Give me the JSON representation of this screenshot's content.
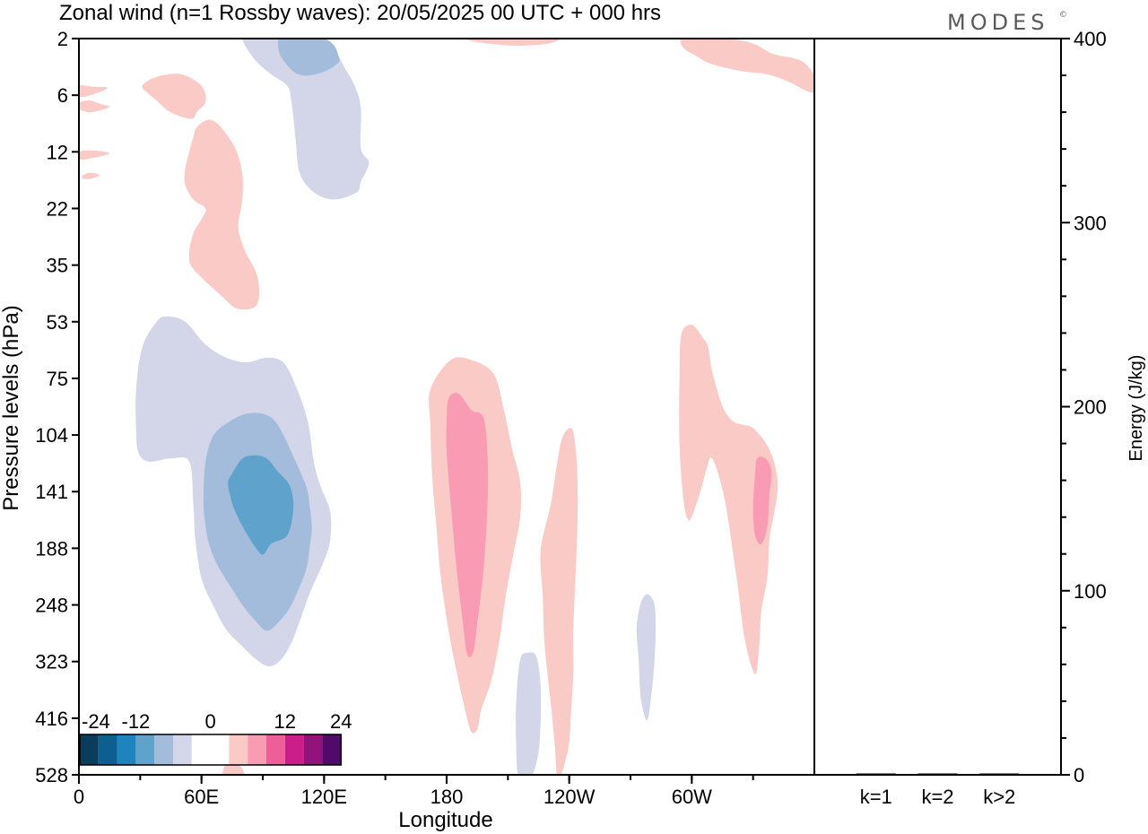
{
  "chart_data": {
    "type": "heatmap",
    "title": "Zonal wind (n=1 Rossby waves):  20/05/2025  00 UTC  + 000 hrs",
    "brand": "MODES",
    "brand_mark": "©",
    "xlabel": "Longitude",
    "ylabel": "Pressure levels (hPa)",
    "y2label": "Energy (J/kg)",
    "x_ticks": [
      "0",
      "60E",
      "120E",
      "180",
      "120W",
      "60W"
    ],
    "x_tick_lon": [
      0,
      60,
      120,
      180,
      240,
      300
    ],
    "xlim": [
      0,
      360
    ],
    "y_levels": [
      "2",
      "6",
      "12",
      "22",
      "35",
      "53",
      "75",
      "104",
      "141",
      "188",
      "248",
      "323",
      "416",
      "528"
    ],
    "y2_ticks": [
      "0",
      "100",
      "200",
      "300",
      "400"
    ],
    "y2_values": [
      0,
      100,
      200,
      300,
      400
    ],
    "y2lim": [
      0,
      400
    ],
    "colorbar": {
      "labels": [
        "-24",
        "-12",
        "0",
        "12",
        "24"
      ],
      "colors": [
        "#0a3d5c",
        "#0d5f91",
        "#1f84bd",
        "#5fa3cc",
        "#a3bcdc",
        "#d3d6e8",
        "#ffffff",
        "#ffffff",
        "#f9cac6",
        "#f99bb2",
        "#ee5f9a",
        "#cc1e8a",
        "#93137c",
        "#510a6a"
      ]
    },
    "energy_bars": {
      "categories": [
        "k=1",
        "k=2",
        "k>2"
      ],
      "values": [
        0.5,
        0.1,
        0.4
      ]
    },
    "contours": [
      {
        "level": "-3",
        "color": "#d3d6e8",
        "lon": [
          38.0,
          43.0,
          52.0,
          62.0,
          72.0,
          82.0,
          92.0,
          100.0,
          106.0,
          112.0,
          115.0,
          118.0,
          123.0,
          123.0,
          120.0,
          113.0,
          108.0,
          104.0,
          99.0,
          93.0,
          86.0,
          79.0,
          72.0,
          66.0,
          60.0,
          57.0,
          56.0,
          54.0,
          45.0,
          34.0,
          29.0,
          28.0,
          28.0,
          31.0
        ],
        "lev": [
          53.0,
          51.0,
          53.0,
          61.0,
          66.0,
          68.0,
          66.0,
          68.0,
          78.0,
          96.0,
          120.0,
          136.0,
          156.0,
          180.0,
          200.0,
          234.0,
          268.0,
          296.0,
          320.0,
          330.0,
          318.0,
          298.0,
          278.0,
          250.0,
          218.0,
          180.0,
          150.0,
          120.0,
          118.0,
          120.0,
          114.0,
          100.0,
          80.0,
          62.0
        ]
      },
      {
        "level": "-6",
        "color": "#a3bcdc",
        "lon": [
          66.0,
          74.0,
          82.0,
          90.0,
          96.0,
          101.0,
          104.0,
          111.0,
          113.0,
          114.0,
          113.0,
          111.0,
          104.0,
          98.0,
          92.0,
          86.0,
          80.0,
          74.0,
          68.0,
          64.0,
          62.0,
          61.0,
          62.0
        ],
        "lev": [
          104.0,
          96.0,
          92.0,
          92.0,
          96.0,
          106.0,
          114.0,
          136.0,
          152.0,
          170.0,
          186.0,
          210.0,
          248.0,
          268.0,
          280.0,
          266.0,
          248.0,
          226.0,
          205.0,
          186.0,
          168.0,
          148.0,
          120.0
        ]
      },
      {
        "level": "-9",
        "color": "#5fa3cc",
        "lon": [
          75.0,
          80.0,
          86.0,
          92.0,
          97.0,
          103.0,
          105.0,
          104.0,
          102.0,
          99.0,
          94.0,
          90.0,
          86.0,
          80.0,
          76.0,
          74.0,
          73.0
        ],
        "lev": [
          128.0,
          118.0,
          116.0,
          118.0,
          126.0,
          136.0,
          150.0,
          166.0,
          176.0,
          180.0,
          184.0,
          194.0,
          186.0,
          168.0,
          154.0,
          144.0,
          134.0
        ]
      },
      {
        "level": "-3",
        "color": "#d3d6e8",
        "lon": [
          80.0,
          87.0,
          100.0,
          116.0,
          125.0,
          130.0,
          135.0,
          138.0,
          138.0,
          142.0,
          138.0,
          136.0,
          125.0,
          115.0,
          108.0,
          106.0,
          104.0,
          102.0,
          94.0,
          86.0
        ],
        "lev": [
          2.0,
          2.0,
          1.8,
          2.0,
          2.5,
          3.5,
          5.0,
          7.0,
          11.5,
          13.5,
          16.5,
          18.5,
          20.0,
          18.5,
          15.0,
          10.0,
          6.5,
          5.0,
          4.0,
          3.0
        ]
      },
      {
        "level": "-6",
        "color": "#a3bcdc",
        "lon": [
          98.0,
          104.0,
          112.0,
          120.0,
          125.0,
          127.0,
          127.0,
          120.0,
          112.0,
          106.0,
          101.0,
          98.0
        ],
        "lev": [
          2.0,
          1.8,
          1.8,
          2.0,
          2.3,
          2.8,
          3.2,
          3.8,
          4.1,
          3.9,
          3.2,
          2.6
        ]
      },
      {
        "level": "3",
        "color": "#f9cac6",
        "lon": [
          172.0,
          182.0,
          192.0,
          203.0,
          208.0,
          212.0,
          216.0,
          216.0,
          213.0,
          209.0,
          206.0,
          202.0,
          197.0,
          195.0,
          192.0,
          189.0,
          185.0,
          181.0,
          177.0,
          175.0,
          173.0,
          172.0
        ],
        "lev": [
          80.0,
          67.0,
          67.0,
          73.0,
          90.0,
          112.0,
          134.0,
          160.0,
          190.0,
          236.0,
          290.0,
          350.0,
          400.0,
          436.0,
          440.0,
          400.0,
          340.0,
          280.0,
          214.0,
          168.0,
          132.0,
          98.0
        ]
      },
      {
        "level": "6",
        "color": "#f99bb2",
        "lon": [
          181.0,
          186.0,
          192.0,
          198.0,
          200.0,
          200.0,
          198.0,
          195.0,
          193.0,
          190.0,
          188.0,
          186.0,
          184.0,
          182.0,
          180.0,
          180.0
        ],
        "lev": [
          84.0,
          82.0,
          90.0,
          94.0,
          116.0,
          150.0,
          210.0,
          270.0,
          310.0,
          312.0,
          270.0,
          230.0,
          190.0,
          150.0,
          114.0,
          96.0
        ]
      },
      {
        "level": "3",
        "color": "#f9cac6",
        "lon": [
          231.0,
          236.0,
          241.0,
          243.0,
          244.0,
          244.0,
          243.0,
          242.0,
          242.0,
          241.0,
          240.0,
          238.0,
          236.0,
          234.0,
          233.0,
          231.0,
          228.0,
          227.0,
          226.0
        ],
        "lev": [
          150.0,
          108.0,
          100.0,
          110.0,
          130.0,
          170.0,
          220.0,
          280.0,
          340.0,
          400.0,
          460.0,
          500.0,
          528.0,
          528.0,
          470.0,
          390.0,
          300.0,
          236.0,
          190.0
        ]
      },
      {
        "level": "3",
        "color": "#f9cac6",
        "lon": [
          295.0,
          300.0,
          305.0,
          308.0,
          310.0,
          315.0,
          320.0,
          325.0,
          330.0,
          337.0,
          341.0,
          342.0,
          340.0,
          338.0,
          337.0,
          334.0,
          333.0,
          331.0,
          326.0,
          322.0,
          316.0,
          310.0,
          307.0,
          304.0,
          300.0,
          298.0,
          296.0,
          294.0,
          294.0
        ],
        "lev": [
          57.0,
          54.0,
          58.0,
          62.0,
          72.0,
          88.0,
          96.0,
          98.0,
          100.0,
          110.0,
          124.0,
          140.0,
          160.0,
          180.0,
          216.0,
          256.0,
          300.0,
          342.0,
          292.0,
          218.0,
          146.0,
          118.0,
          126.0,
          142.0,
          160.0,
          162.0,
          148.0,
          110.0,
          72.0
        ]
      },
      {
        "level": "6",
        "color": "#f99bb2",
        "lon": [
          332.0,
          336.0,
          339.0,
          338.0,
          337.0,
          334.0,
          331.0,
          330.0,
          331.0
        ],
        "lev": [
          118.0,
          118.0,
          126.0,
          144.0,
          168.0,
          184.0,
          176.0,
          154.0,
          128.0
        ]
      },
      {
        "level": "3",
        "color": "#f9cac6",
        "lon": [
          38.0,
          50.0,
          60.0,
          62.0,
          58.0,
          55.0,
          45.0,
          38.0,
          34.0,
          31.0
        ],
        "lev": [
          4.2,
          4.0,
          5.0,
          6.5,
          7.3,
          8.0,
          7.4,
          6.4,
          5.8,
          5.0
        ]
      },
      {
        "level": "3",
        "color": "#f9cac6",
        "lon": [
          58.0,
          64.0,
          70.0,
          77.0,
          80.0,
          80.0,
          78.0,
          79.0,
          82.0,
          86.0,
          88.0,
          88.0,
          85.0,
          77.0,
          70.0,
          56.0,
          54.0,
          56.0,
          60.0,
          62.0,
          56.0,
          52.0,
          52.0,
          54.0,
          56.0
        ],
        "lev": [
          8.8,
          8.1,
          9.0,
          11.8,
          15.3,
          20.0,
          25.0,
          28.0,
          32.0,
          36.0,
          40.0,
          45.0,
          48.0,
          48.0,
          44.0,
          36.0,
          32.0,
          27.0,
          24.0,
          22.0,
          20.0,
          17.0,
          14.5,
          12.0,
          10.0
        ]
      },
      {
        "level": "3",
        "color": "#f9cac6",
        "lon": [
          0.0,
          7.0,
          14.0,
          7.0,
          0.0
        ],
        "lev": [
          5.0,
          5.1,
          5.2,
          5.9,
          6.1
        ]
      },
      {
        "level": "3",
        "color": "#f9cac6",
        "lon": [
          0.0,
          5.0,
          11.0,
          15.0,
          11.0,
          5.0,
          0.0
        ],
        "lev": [
          6.6,
          6.4,
          6.7,
          6.9,
          7.2,
          7.4,
          7.1
        ]
      },
      {
        "level": "3",
        "color": "#f9cac6",
        "lon": [
          0.0,
          7.0,
          15.0,
          7.0,
          0.0
        ],
        "lev": [
          12.0,
          11.8,
          12.2,
          12.8,
          13.0
        ]
      },
      {
        "level": "3",
        "color": "#f9cac6",
        "lon": [
          2.0,
          6.0,
          10.0,
          6.0,
          2.0
        ],
        "lev": [
          15.4,
          15.0,
          15.4,
          16.0,
          16.0
        ]
      },
      {
        "level": "3",
        "color": "#f9cac6",
        "lon": [
          190.0,
          200.0,
          212.0,
          225.0,
          235.0,
          230.0,
          215.0,
          200.0,
          192.0
        ],
        "lev": [
          2.0,
          2.0,
          1.95,
          2.0,
          2.0,
          2.2,
          2.3,
          2.2,
          2.1
        ]
      },
      {
        "level": "3",
        "color": "#f9cac6",
        "lon": [
          295.0,
          305.0,
          318.0,
          330.0,
          340.0,
          352.0,
          358.0,
          360.0,
          360.0,
          356.0,
          347.0,
          337.0,
          326.0,
          316.0,
          308.0,
          302.0,
          296.0
        ],
        "lev": [
          2.0,
          1.9,
          2.0,
          2.2,
          2.7,
          3.0,
          3.6,
          4.4,
          5.6,
          5.5,
          4.6,
          4.0,
          3.8,
          3.5,
          3.2,
          2.8,
          2.4
        ]
      },
      {
        "level": "3",
        "color": "#f9cac6",
        "lon": [
          70.0,
          72.0,
          74.0,
          76.0,
          78.0,
          80.0,
          80.0,
          70.0
        ],
        "lev": [
          528.0,
          500.0,
          490.0,
          495.0,
          505.0,
          515.0,
          528.0,
          528.0
        ]
      },
      {
        "level": "-3",
        "color": "#d3d6e8",
        "lon": [
          216.0,
          220.0,
          224.0,
          226.0,
          226.0,
          225.0,
          222.0,
          219.0,
          215.0,
          214.0,
          214.0
        ],
        "lev": [
          320.0,
          310.0,
          316.0,
          360.0,
          420.0,
          480.0,
          528.0,
          528.0,
          528.0,
          460.0,
          390.0
        ]
      },
      {
        "level": "-3",
        "color": "#d3d6e8",
        "lon": [
          276.0,
          279.0,
          282.0,
          282.0,
          280.0,
          278.0,
          275.0,
          274.0,
          273.0,
          274.0
        ],
        "lev": [
          240.0,
          236.0,
          252.0,
          310.0,
          380.0,
          420.0,
          380.0,
          320.0,
          280.0,
          256.0
        ]
      }
    ]
  }
}
